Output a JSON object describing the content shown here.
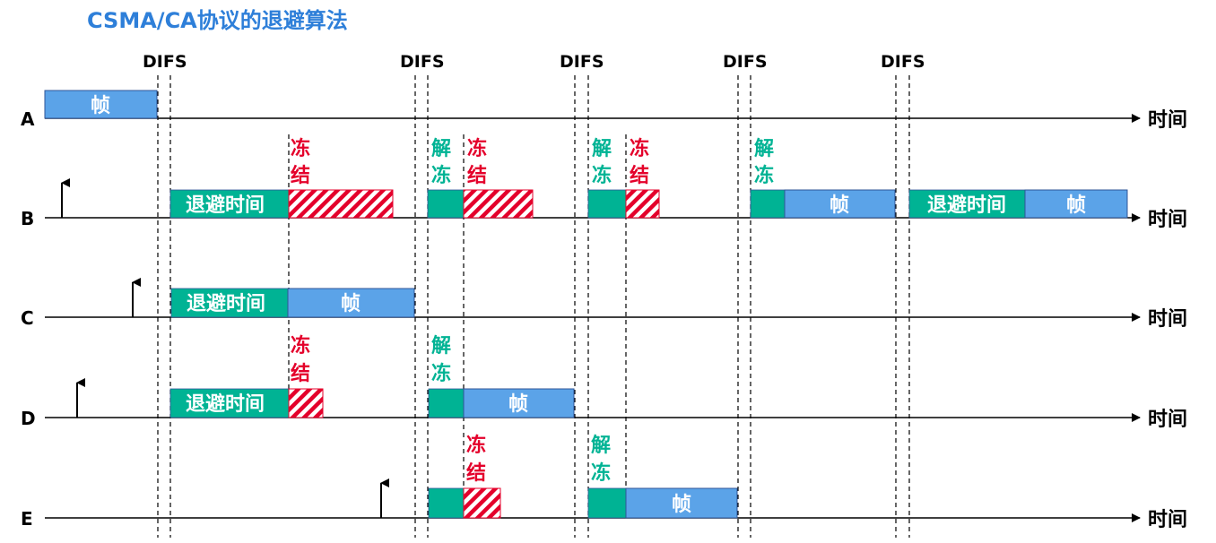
{
  "title": "CSMA/CA协议的退避算法",
  "difs_label": "DIFS",
  "axis_label": "时间",
  "labels": {
    "frame": "帧",
    "backoff": "退避时间",
    "freeze_1": "冻",
    "freeze_2": "结",
    "unfreeze_1": "解",
    "unfreeze_2": "冻"
  },
  "stations": [
    {
      "name": "A"
    },
    {
      "name": "B"
    },
    {
      "name": "C"
    },
    {
      "name": "D"
    },
    {
      "name": "E"
    }
  ],
  "colors": {
    "title": "#2E7FD9",
    "frame": "#5BA3E8",
    "backoff": "#00B394",
    "freeze": "#E4002B",
    "unfreeze": "#00B394",
    "axis": "#000000"
  }
}
